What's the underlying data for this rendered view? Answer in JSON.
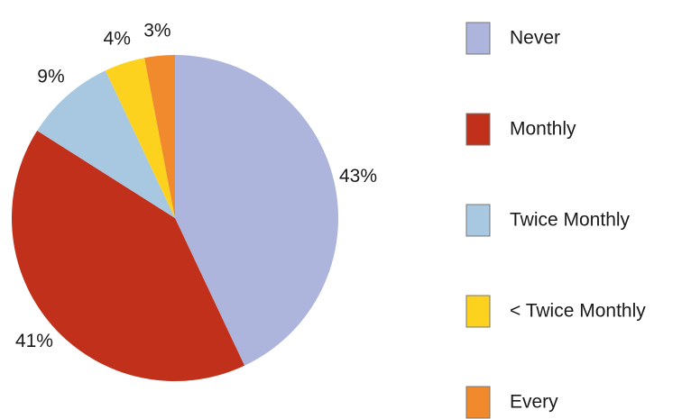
{
  "chart_data": {
    "type": "pie",
    "categories": [
      "Never",
      "Monthly",
      "Twice Monthly",
      "< Twice Monthly",
      "Every"
    ],
    "values": [
      43,
      41,
      9,
      4,
      3
    ],
    "value_labels": [
      "43%",
      "41%",
      "9%",
      "4%",
      "3%"
    ],
    "colors": [
      "#adb5dc",
      "#c0301b",
      "#a8c8e2",
      "#fcd21e",
      "#f08a2c"
    ]
  }
}
